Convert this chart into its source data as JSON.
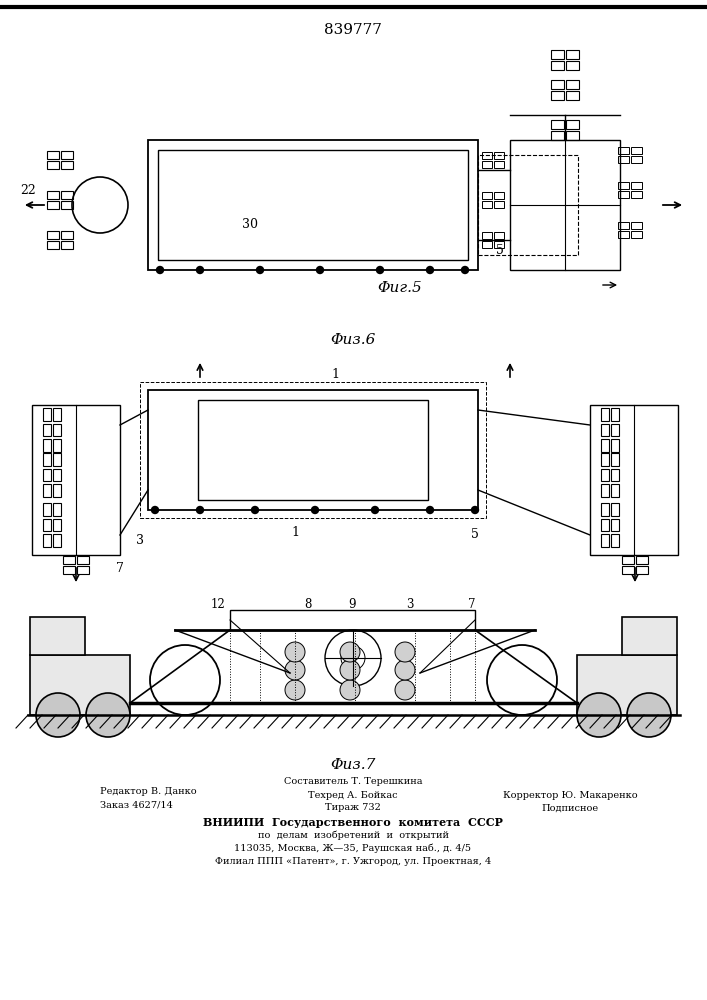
{
  "patent_number": "839777",
  "fig5_label": "Φиг.5",
  "fig6_label": "Φиз.6",
  "fig7_label": "Φиз.7",
  "editor": "Редактор В. Данко",
  "order": "Заказ 4627/14",
  "composer": "Составитель Т. Терешкина",
  "techred": "Техред А. Бойкас",
  "tirazh": "Тираж 732",
  "corrector": "Корректор Ю. Макаренко",
  "podpisnoe": "Подписное",
  "vniip1": "ВНИИПИ  Государственного  комитета  СССР",
  "vniip2": "по  делам  изобретений  и  открытий",
  "vniip3": "113035, Москва, Ж—35, Раушская наб., д. 4/5",
  "filial": "Филиал ППП «Патент», г. Ужгород, ул. Проектная, 4",
  "bg_color": "#ffffff",
  "line_color": "#000000"
}
